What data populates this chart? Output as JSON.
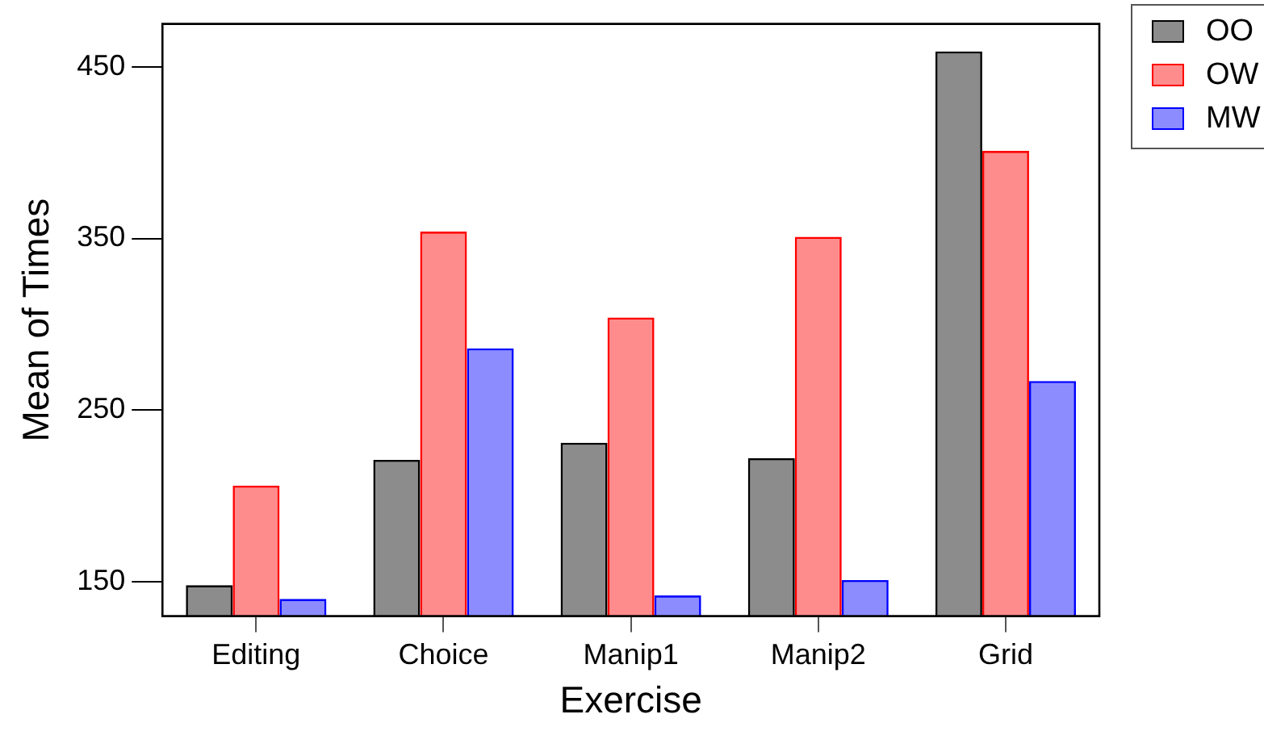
{
  "chart_data": {
    "type": "bar",
    "xlabel": "Exercise",
    "ylabel": "Mean of Times",
    "categories": [
      "Editing",
      "Choice",
      "Manip1",
      "Manip2",
      "Grid"
    ],
    "series": [
      {
        "name": "OO",
        "color": "#000000",
        "values": [
          148,
          221,
          231,
          222,
          459
        ]
      },
      {
        "name": "OW",
        "color": "#ff0000",
        "values": [
          206,
          354,
          304,
          351,
          401
        ]
      },
      {
        "name": "MW",
        "color": "#0000ff",
        "values": [
          140,
          286,
          142,
          151,
          267
        ]
      }
    ],
    "ylim": [
      130,
      475
    ],
    "yticks": [
      150,
      250,
      350,
      450
    ],
    "grid": false,
    "legend": "top right"
  }
}
